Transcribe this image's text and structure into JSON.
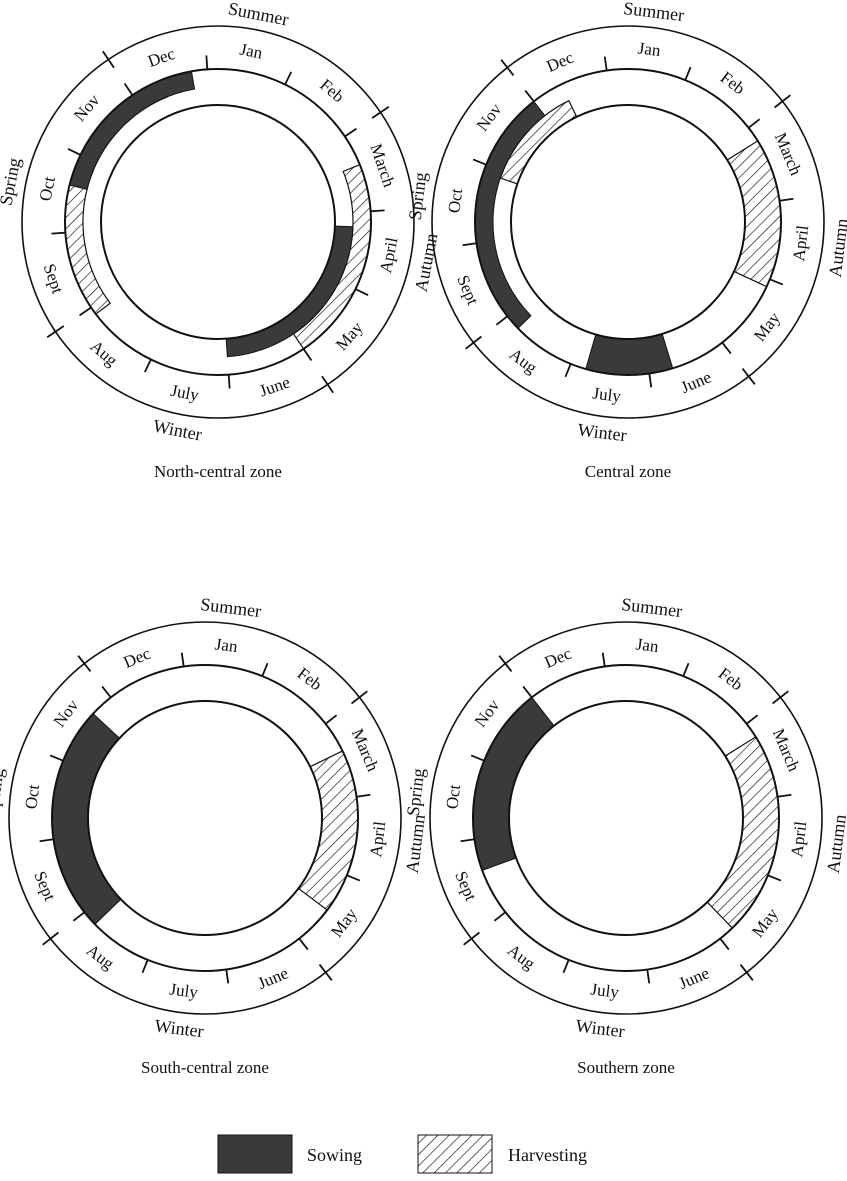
{
  "months": [
    "Jan",
    "Feb",
    "March",
    "April",
    "May",
    "June",
    "July",
    "Aug",
    "Sept",
    "Oct",
    "Nov",
    "Dec"
  ],
  "legend": {
    "sowing": "Sowing",
    "harvesting": "Harvesting"
  },
  "colors": {
    "sowing": "#3a3a3a",
    "line": "#111111",
    "background": "#ffffff"
  },
  "zones": [
    {
      "name": "North-central zone",
      "seasons": [
        "Summer",
        "Autumn",
        "Winter",
        "Spring"
      ],
      "sowing": [
        {
          "start": 10.1,
          "end": 12.3,
          "lane": "outer"
        },
        {
          "start": 3.7,
          "end": 6.5,
          "lane": "inner"
        }
      ],
      "harvesting": [
        {
          "start": 8.4,
          "end": 11.9,
          "lane": "outer"
        },
        {
          "start": 2.9,
          "end": 5.5,
          "lane": "outer"
        }
      ]
    },
    {
      "name": "Central zone",
      "seasons": [
        "Summer",
        "Autumn",
        "Winter",
        "Spring"
      ],
      "sowing": [
        {
          "start": 8.3,
          "end": 11.5,
          "lane": "outer"
        },
        {
          "start": 6.2,
          "end": 7.3,
          "lane": "full"
        }
      ],
      "harvesting": [
        {
          "start": 10.4,
          "end": 11.9,
          "lane": "inner"
        },
        {
          "start": 2.7,
          "end": 4.6,
          "lane": "full"
        }
      ]
    },
    {
      "name": "South-central zone",
      "seasons": [
        "Summer",
        "Autumn",
        "Winter",
        "Spring"
      ],
      "sowing": [
        {
          "start": 8.3,
          "end": 11.2,
          "lane": "full"
        }
      ],
      "harvesting": [
        {
          "start": 2.9,
          "end": 5.0,
          "lane": "full"
        }
      ]
    },
    {
      "name": "Southern zone",
      "seasons": [
        "Summer",
        "Autumn",
        "Winter",
        "Spring"
      ],
      "sowing": [
        {
          "start": 9.1,
          "end": 11.5,
          "lane": "full"
        }
      ],
      "harvesting": [
        {
          "start": 2.7,
          "end": 5.3,
          "lane": "full"
        }
      ]
    }
  ]
}
